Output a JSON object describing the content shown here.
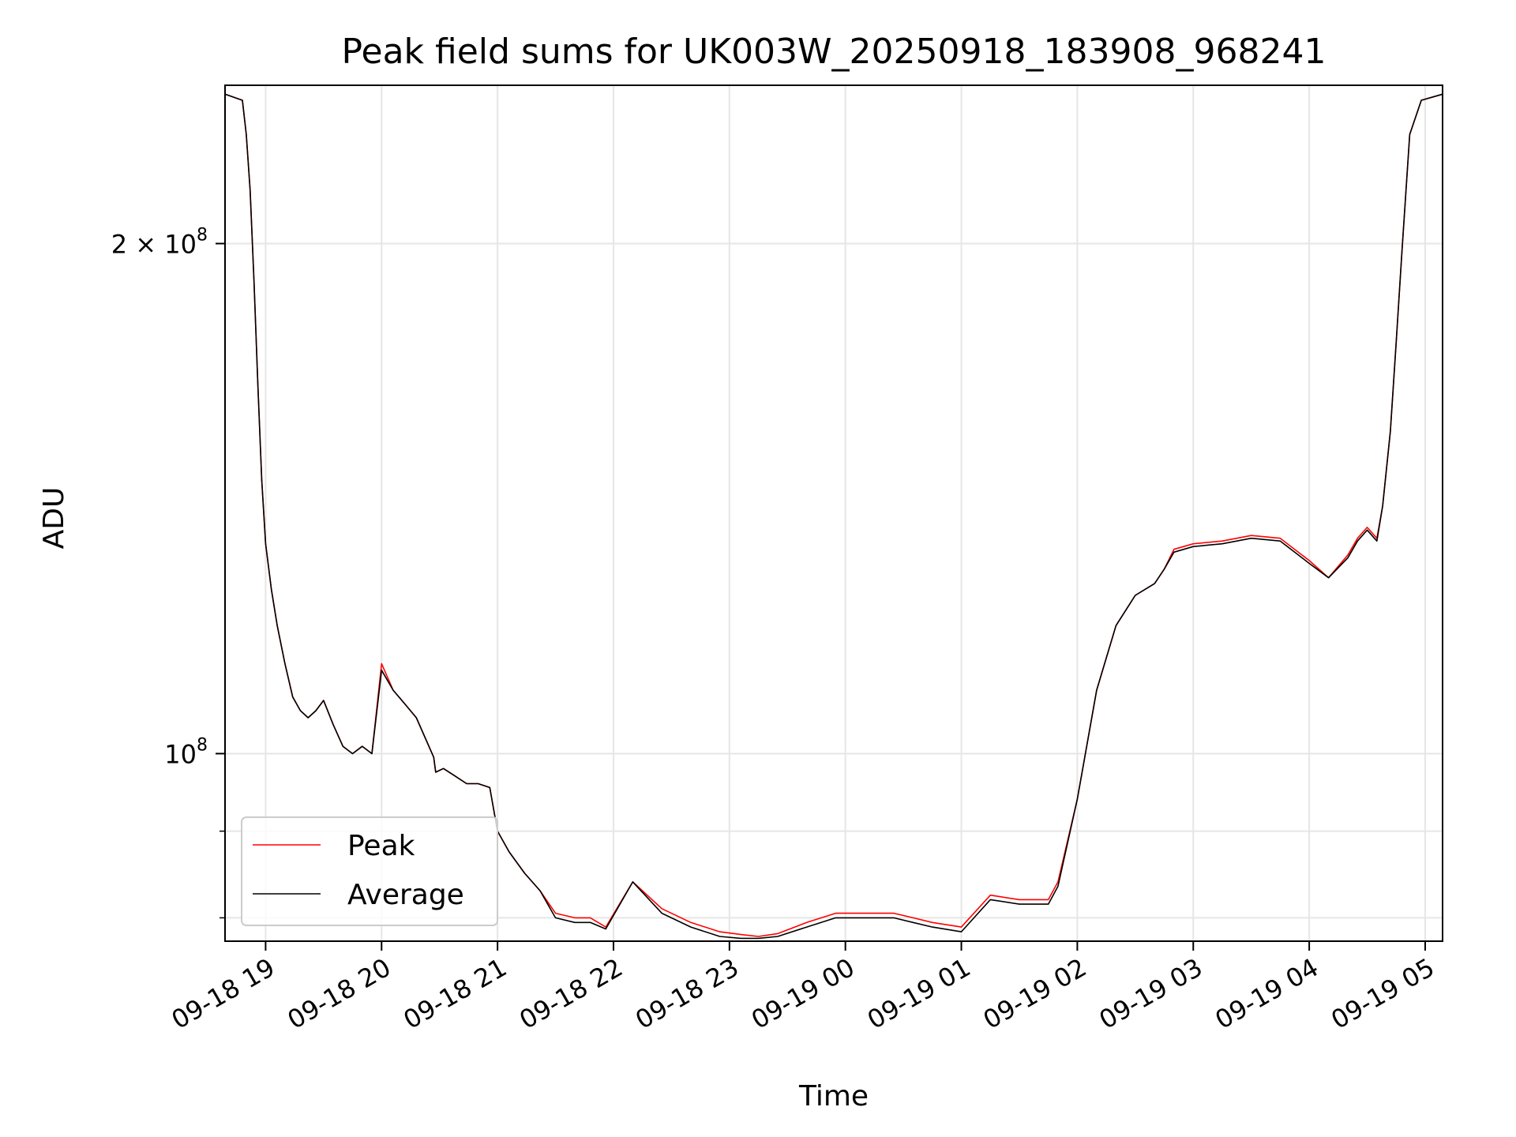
{
  "chart_data": {
    "type": "line",
    "title": "Peak field sums for UK003W_20250918_183908_968241",
    "xlabel": "Time",
    "ylabel": "ADU",
    "yscale": "log",
    "ylim": [
      77500000,
      248000000
    ],
    "xlim": [
      "2025-09-18 18:39",
      "2025-09-19 05:09"
    ],
    "grid": true,
    "legend": "lower left",
    "x_ticks": [
      "09-18 19",
      "09-18 20",
      "09-18 21",
      "09-18 22",
      "09-18 23",
      "09-19 00",
      "09-19 01",
      "09-19 02",
      "09-19 03",
      "09-19 04",
      "09-19 05"
    ],
    "y_ticks": [
      {
        "value": 200000000,
        "label": "2 × 10",
        "exp": "8"
      },
      {
        "value": 100000000,
        "label": "10",
        "exp": "8"
      }
    ],
    "y_minor_ticks": [
      90000000,
      80000000
    ],
    "colors": {
      "peak": "#ff0000",
      "average": "#000000",
      "grid": "#e6e6e6"
    },
    "series": [
      {
        "name": "Peak",
        "x": [
          "2025-09-18 18:39",
          "2025-09-18 18:48",
          "2025-09-18 18:50",
          "2025-09-18 18:52",
          "2025-09-18 18:54",
          "2025-09-18 18:56",
          "2025-09-18 18:58",
          "2025-09-18 19:00",
          "2025-09-18 19:03",
          "2025-09-18 19:06",
          "2025-09-18 19:10",
          "2025-09-18 19:14",
          "2025-09-18 19:18",
          "2025-09-18 19:22",
          "2025-09-18 19:26",
          "2025-09-18 19:30",
          "2025-09-18 19:35",
          "2025-09-18 19:40",
          "2025-09-18 19:45",
          "2025-09-18 19:50",
          "2025-09-18 19:55",
          "2025-09-18 20:00",
          "2025-09-18 20:06",
          "2025-09-18 20:12",
          "2025-09-18 20:18",
          "2025-09-18 20:27",
          "2025-09-18 20:28",
          "2025-09-18 20:32",
          "2025-09-18 20:38",
          "2025-09-18 20:44",
          "2025-09-18 20:50",
          "2025-09-18 20:56",
          "2025-09-18 21:00",
          "2025-09-18 21:06",
          "2025-09-18 21:14",
          "2025-09-18 21:22",
          "2025-09-18 21:30",
          "2025-09-18 21:40",
          "2025-09-18 21:48",
          "2025-09-18 21:56",
          "2025-09-18 22:10",
          "2025-09-18 22:25",
          "2025-09-18 22:40",
          "2025-09-18 22:55",
          "2025-09-18 23:06",
          "2025-09-18 23:15",
          "2025-09-18 23:25",
          "2025-09-18 23:40",
          "2025-09-18 23:55",
          "2025-09-19 00:10",
          "2025-09-19 00:25",
          "2025-09-19 00:35",
          "2025-09-19 00:45",
          "2025-09-19 01:00",
          "2025-09-19 01:15",
          "2025-09-19 01:30",
          "2025-09-19 01:45",
          "2025-09-19 01:50",
          "2025-09-19 02:00",
          "2025-09-19 02:10",
          "2025-09-19 02:20",
          "2025-09-19 02:30",
          "2025-09-19 02:40",
          "2025-09-19 02:45",
          "2025-09-19 02:50",
          "2025-09-19 03:00",
          "2025-09-19 03:15",
          "2025-09-19 03:30",
          "2025-09-19 03:45",
          "2025-09-19 04:00",
          "2025-09-19 04:10",
          "2025-09-19 04:20",
          "2025-09-19 04:25",
          "2025-09-19 04:30",
          "2025-09-19 04:35",
          "2025-09-19 04:38",
          "2025-09-19 04:42",
          "2025-09-19 04:45",
          "2025-09-19 04:48",
          "2025-09-19 04:52",
          "2025-09-19 04:58",
          "2025-09-19 05:09"
        ],
        "y": [
          245000000,
          243000000,
          232000000,
          215000000,
          190000000,
          165000000,
          145000000,
          133000000,
          125000000,
          119000000,
          113000000,
          108000000,
          106000000,
          105000000,
          106000000,
          107500000,
          104000000,
          101000000,
          100000000,
          101000000,
          100000000,
          113000000,
          109000000,
          107000000,
          105000000,
          99500000,
          97500000,
          98000000,
          97000000,
          96000000,
          96000000,
          95500000,
          90000000,
          87500000,
          85000000,
          83000000,
          80500000,
          80000000,
          80000000,
          79000000,
          84000000,
          81000000,
          79500000,
          78500000,
          78200000,
          78000000,
          78300000,
          79500000,
          80500000,
          80500000,
          80500000,
          80000000,
          79500000,
          79000000,
          82500000,
          82000000,
          82000000,
          84000000,
          94000000,
          109000000,
          119000000,
          124000000,
          126000000,
          128500000,
          132000000,
          133000000,
          133500000,
          134500000,
          134000000,
          130000000,
          127000000,
          131000000,
          134000000,
          136000000,
          134000000,
          140000000,
          155000000,
          175000000,
          198000000,
          232000000,
          243000000,
          245000000
        ]
      },
      {
        "name": "Average",
        "x": [
          "2025-09-18 18:39",
          "2025-09-18 18:48",
          "2025-09-18 18:50",
          "2025-09-18 18:52",
          "2025-09-18 18:54",
          "2025-09-18 18:56",
          "2025-09-18 18:58",
          "2025-09-18 19:00",
          "2025-09-18 19:03",
          "2025-09-18 19:06",
          "2025-09-18 19:10",
          "2025-09-18 19:14",
          "2025-09-18 19:18",
          "2025-09-18 19:22",
          "2025-09-18 19:26",
          "2025-09-18 19:30",
          "2025-09-18 19:35",
          "2025-09-18 19:40",
          "2025-09-18 19:45",
          "2025-09-18 19:50",
          "2025-09-18 19:55",
          "2025-09-18 20:00",
          "2025-09-18 20:06",
          "2025-09-18 20:12",
          "2025-09-18 20:18",
          "2025-09-18 20:27",
          "2025-09-18 20:28",
          "2025-09-18 20:32",
          "2025-09-18 20:38",
          "2025-09-18 20:44",
          "2025-09-18 20:50",
          "2025-09-18 20:56",
          "2025-09-18 21:00",
          "2025-09-18 21:06",
          "2025-09-18 21:14",
          "2025-09-18 21:22",
          "2025-09-18 21:30",
          "2025-09-18 21:40",
          "2025-09-18 21:48",
          "2025-09-18 21:56",
          "2025-09-18 22:10",
          "2025-09-18 22:25",
          "2025-09-18 22:40",
          "2025-09-18 22:55",
          "2025-09-18 23:06",
          "2025-09-18 23:15",
          "2025-09-18 23:25",
          "2025-09-18 23:40",
          "2025-09-18 23:55",
          "2025-09-19 00:10",
          "2025-09-19 00:25",
          "2025-09-19 00:35",
          "2025-09-19 00:45",
          "2025-09-19 01:00",
          "2025-09-19 01:15",
          "2025-09-19 01:30",
          "2025-09-19 01:45",
          "2025-09-19 01:50",
          "2025-09-19 02:00",
          "2025-09-19 02:10",
          "2025-09-19 02:20",
          "2025-09-19 02:30",
          "2025-09-19 02:40",
          "2025-09-19 02:45",
          "2025-09-19 02:50",
          "2025-09-19 03:00",
          "2025-09-19 03:15",
          "2025-09-19 03:30",
          "2025-09-19 03:45",
          "2025-09-19 04:00",
          "2025-09-19 04:10",
          "2025-09-19 04:20",
          "2025-09-19 04:25",
          "2025-09-19 04:30",
          "2025-09-19 04:35",
          "2025-09-19 04:38",
          "2025-09-19 04:42",
          "2025-09-19 04:45",
          "2025-09-19 04:48",
          "2025-09-19 04:52",
          "2025-09-19 04:58",
          "2025-09-19 05:09"
        ],
        "y": [
          245000000,
          243000000,
          232000000,
          215000000,
          190000000,
          165000000,
          145000000,
          133000000,
          125000000,
          119000000,
          113000000,
          108000000,
          106000000,
          105000000,
          106000000,
          107500000,
          104000000,
          101000000,
          100000000,
          101000000,
          100000000,
          112000000,
          109000000,
          107000000,
          105000000,
          99500000,
          97500000,
          98000000,
          97000000,
          96000000,
          96000000,
          95500000,
          90000000,
          87500000,
          85000000,
          83000000,
          80000000,
          79500000,
          79500000,
          78800000,
          84000000,
          80500000,
          79000000,
          78000000,
          77800000,
          77800000,
          78000000,
          79000000,
          80000000,
          80000000,
          80000000,
          79500000,
          79000000,
          78500000,
          82000000,
          81500000,
          81500000,
          83500000,
          94000000,
          109000000,
          119000000,
          124000000,
          126000000,
          128500000,
          131500000,
          132500000,
          133000000,
          134000000,
          133500000,
          129500000,
          127000000,
          130500000,
          133500000,
          135500000,
          133500000,
          140000000,
          155000000,
          175000000,
          198000000,
          232000000,
          243000000,
          245000000
        ]
      }
    ]
  }
}
